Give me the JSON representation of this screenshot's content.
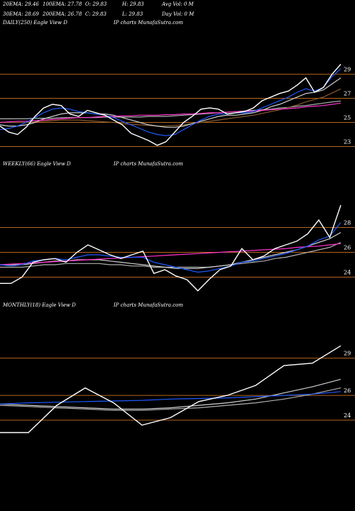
{
  "header": {
    "rows": [
      [
        "20EMA: 29.46",
        "100EMA: 27.78",
        "O: 29.83",
        "H: 29.83",
        "Avg Vol: 0  M"
      ],
      [
        "30EMA: 28.69",
        "200EMA: 26.78",
        "C: 29.83",
        "L: 29.83",
        "Day Vol: 0  M"
      ]
    ]
  },
  "chart_data": [
    {
      "type": "line",
      "title": "DAILY(250) Eagle  View  D",
      "subtitle": "IP charts MunafaSutra.com",
      "ylim": [
        22.5,
        32.8
      ],
      "yticks": [
        23,
        25,
        27,
        29
      ],
      "grid": true,
      "series": [
        {
          "color": "#b0b0b0",
          "values": [
            25.3,
            25.3,
            25.3,
            25.3,
            25.35,
            25.35,
            25.35,
            25.4,
            25.4,
            25.4,
            25.4,
            25.4,
            25.45,
            25.45,
            25.45,
            25.45,
            25.45,
            25.5,
            25.5,
            25.5,
            25.55,
            25.6,
            25.65,
            25.7,
            25.75,
            25.8,
            25.85,
            25.9,
            25.95,
            26.0,
            26.05,
            26.1,
            26.2,
            26.25,
            26.35,
            26.4,
            26.5,
            26.6,
            26.7,
            26.78
          ]
        },
        {
          "color": "#8b5a2b",
          "values": [
            25.0,
            25.0,
            25.0,
            25.0,
            25.05,
            25.1,
            25.15,
            25.2,
            25.2,
            25.2,
            25.15,
            25.1,
            25.05,
            25.0,
            24.9,
            24.85,
            24.8,
            24.75,
            24.7,
            24.7,
            24.75,
            24.8,
            24.9,
            25.0,
            25.1,
            25.2,
            25.3,
            25.4,
            25.5,
            25.6,
            25.75,
            25.9,
            26.05,
            26.25,
            26.45,
            26.7,
            26.9,
            27.1,
            27.45,
            27.78
          ]
        },
        {
          "color": "#d0d0d0",
          "values": [
            24.8,
            24.7,
            24.7,
            24.8,
            25.0,
            25.3,
            25.5,
            25.7,
            25.8,
            25.8,
            25.8,
            25.7,
            25.7,
            25.6,
            25.4,
            25.2,
            25.0,
            24.8,
            24.7,
            24.6,
            24.6,
            24.7,
            24.9,
            25.1,
            25.3,
            25.5,
            25.6,
            25.6,
            25.7,
            25.8,
            26.0,
            26.3,
            26.5,
            26.8,
            27.1,
            27.4,
            27.5,
            27.7,
            28.2,
            28.69
          ]
        },
        {
          "color": "#ff33cc",
          "values": [
            25.0,
            25.05,
            25.1,
            25.1,
            25.15,
            25.2,
            25.25,
            25.3,
            25.35,
            25.4,
            25.4,
            25.45,
            25.5,
            25.5,
            25.55,
            25.55,
            25.6,
            25.6,
            25.6,
            25.65,
            25.65,
            25.7,
            25.7,
            25.75,
            25.8,
            25.8,
            25.85,
            25.9,
            25.9,
            25.95,
            26.0,
            26.05,
            26.1,
            26.15,
            26.2,
            26.3,
            26.35,
            26.4,
            26.5,
            26.6
          ]
        },
        {
          "color": "#1e5bff",
          "values": [
            24.4,
            24.5,
            24.7,
            25.0,
            25.4,
            25.8,
            26.1,
            26.2,
            26.1,
            25.9,
            25.8,
            25.7,
            25.6,
            25.4,
            25.1,
            24.8,
            24.5,
            24.2,
            24.0,
            23.9,
            24.0,
            24.4,
            24.8,
            25.2,
            25.5,
            25.7,
            25.7,
            25.8,
            25.8,
            25.9,
            26.2,
            26.5,
            26.8,
            27.1,
            27.5,
            27.8,
            27.6,
            27.9,
            28.8,
            29.46
          ]
        },
        {
          "color": "#ffffff",
          "values": [
            24.7,
            24.2,
            24.0,
            24.6,
            25.5,
            26.2,
            26.5,
            26.4,
            25.7,
            25.5,
            26.0,
            25.8,
            25.6,
            25.2,
            24.8,
            24.1,
            23.8,
            23.5,
            23.1,
            23.4,
            24.2,
            25.0,
            25.5,
            26.1,
            26.2,
            26.1,
            25.7,
            25.8,
            25.9,
            26.2,
            26.8,
            27.1,
            27.4,
            27.6,
            28.1,
            28.7,
            27.5,
            27.9,
            29.0,
            29.83
          ]
        }
      ]
    },
    {
      "type": "line",
      "title": "WEEKLY(66) Eagle  View  D",
      "subtitle": "IP charts MunafaSutra.com",
      "ylim": [
        22.6,
        32.6
      ],
      "yticks": [
        24,
        26,
        28
      ],
      "grid": true,
      "series": [
        {
          "color": "#b0b0b0",
          "values": [
            24.8,
            24.8,
            24.8,
            24.9,
            25.0,
            25.0,
            25.1,
            25.1,
            25.1,
            25.1,
            25.0,
            25.0,
            24.9,
            24.9,
            24.8,
            24.8,
            24.8,
            24.8,
            24.8,
            24.8,
            24.9,
            25.0,
            25.1,
            25.2,
            25.3,
            25.5,
            25.6,
            25.8,
            26.0,
            26.2,
            26.4,
            26.8
          ]
        },
        {
          "color": "#d0d0d0",
          "values": [
            25.0,
            25.0,
            25.0,
            25.1,
            25.2,
            25.3,
            25.3,
            25.4,
            25.4,
            25.4,
            25.3,
            25.2,
            25.1,
            25.0,
            24.9,
            24.8,
            24.7,
            24.7,
            24.7,
            24.8,
            24.9,
            25.0,
            25.2,
            25.4,
            25.6,
            25.8,
            26.0,
            26.2,
            26.5,
            26.8,
            27.1,
            27.6
          ]
        },
        {
          "color": "#ff33cc",
          "values": [
            25.0,
            25.05,
            25.1,
            25.15,
            25.2,
            25.25,
            25.3,
            25.35,
            25.4,
            25.45,
            25.5,
            25.55,
            25.6,
            25.65,
            25.7,
            25.75,
            25.8,
            25.85,
            25.9,
            25.95,
            26.0,
            26.05,
            26.1,
            26.15,
            26.2,
            26.25,
            26.3,
            26.4,
            26.45,
            26.5,
            26.6,
            26.7
          ]
        },
        {
          "color": "#1e5bff",
          "values": [
            25.0,
            24.9,
            25.0,
            25.3,
            25.4,
            25.5,
            25.4,
            25.6,
            25.8,
            25.8,
            25.7,
            25.6,
            25.6,
            25.6,
            25.2,
            25.0,
            24.8,
            24.6,
            24.4,
            24.5,
            24.7,
            24.9,
            25.2,
            25.3,
            25.5,
            25.7,
            25.9,
            26.2,
            26.5,
            27.0,
            27.3,
            28.4
          ]
        },
        {
          "color": "#ffffff",
          "values": [
            23.5,
            23.5,
            24.0,
            25.2,
            25.4,
            25.5,
            25.2,
            26.0,
            26.6,
            26.2,
            25.8,
            25.5,
            25.8,
            26.1,
            24.3,
            24.6,
            24.1,
            23.8,
            22.9,
            23.8,
            24.6,
            24.9,
            26.3,
            25.4,
            25.7,
            26.3,
            26.6,
            26.9,
            27.5,
            28.6,
            27.2,
            29.8
          ]
        }
      ]
    },
    {
      "type": "line",
      "title": "MONTHLY(18) Eagle  View  D",
      "subtitle": "IP charts MunafaSutra.com",
      "ylim": [
        22.4,
        32.7
      ],
      "yticks": [
        24,
        26,
        29
      ],
      "grid": true,
      "series": [
        {
          "color": "#b0b0b0",
          "values": [
            25.2,
            25.1,
            25.0,
            24.9,
            24.8,
            24.8,
            24.9,
            25.0,
            25.2,
            25.4,
            25.7,
            26.1,
            26.6
          ]
        },
        {
          "color": "#d0d0d0",
          "values": [
            25.3,
            25.2,
            25.1,
            25.0,
            24.9,
            24.9,
            25.0,
            25.2,
            25.4,
            25.7,
            26.2,
            26.7,
            27.3
          ]
        },
        {
          "color": "#1e5bff",
          "values": [
            25.3,
            25.4,
            25.45,
            25.5,
            25.55,
            25.6,
            25.7,
            25.75,
            25.8,
            25.9,
            26.0,
            26.1,
            26.3
          ]
        },
        {
          "color": "#ffffff",
          "values": [
            23.0,
            23.0,
            25.2,
            26.6,
            25.4,
            23.6,
            24.2,
            25.5,
            26.0,
            26.8,
            28.4,
            28.6,
            30.0
          ]
        }
      ]
    }
  ]
}
